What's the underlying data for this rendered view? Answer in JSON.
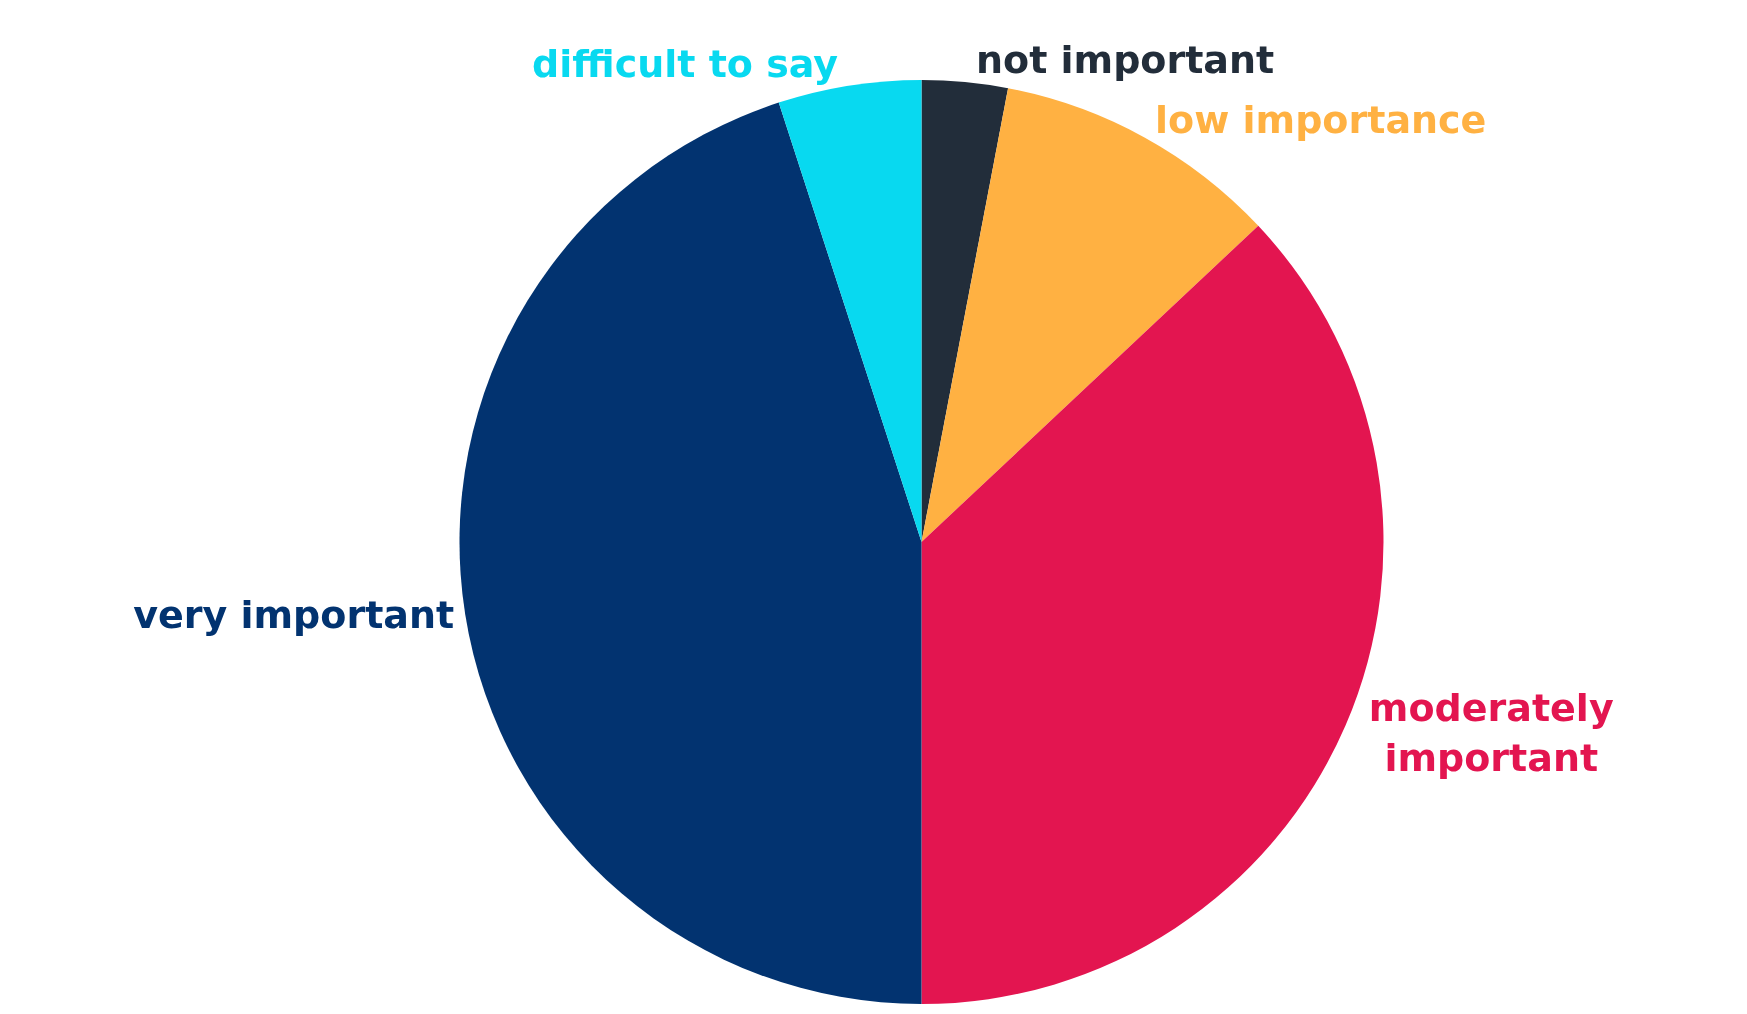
{
  "chart_data": {
    "type": "pie",
    "categories": [
      "not important",
      "low importance",
      "moderately important",
      "very important",
      "difficult to say"
    ],
    "values": [
      3,
      10,
      37,
      45,
      5
    ],
    "colors": [
      "#222d3a",
      "#ffb142",
      "#e31550",
      "#023370",
      "#08d9f0"
    ],
    "legend": false
  }
}
